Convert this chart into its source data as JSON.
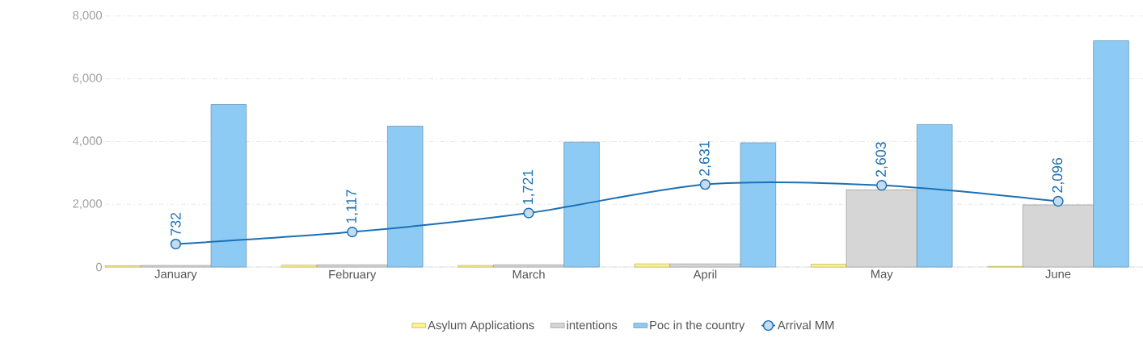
{
  "chart_data": {
    "type": "bar",
    "categories": [
      "January",
      "February",
      "March",
      "April",
      "May",
      "June"
    ],
    "series": [
      {
        "name": "Asylum Applications",
        "color": "#fff38a",
        "values": [
          40,
          60,
          50,
          100,
          90,
          20
        ]
      },
      {
        "name": "intentions",
        "color": "#d6d6d6",
        "values": [
          50,
          70,
          70,
          100,
          2460,
          1980
        ]
      },
      {
        "name": "Poc in the country",
        "color": "#8dcbf5",
        "values": [
          5180,
          4490,
          3980,
          3960,
          4540,
          7210
        ]
      },
      {
        "name": "Arrival MM",
        "type": "line",
        "color": "#1b70b5",
        "marker": "circle",
        "values": [
          732,
          1117,
          1721,
          2631,
          2603,
          2096
        ],
        "value_labels": [
          "732",
          "1,117",
          "1,721",
          "2,631",
          "2,603",
          "2,096"
        ]
      }
    ],
    "ylim": [
      0,
      8000
    ],
    "yticks": [
      {
        "value": 0,
        "label": "0"
      },
      {
        "value": 2000,
        "label": "2,000"
      },
      {
        "value": 4000,
        "label": "4,000"
      },
      {
        "value": 6000,
        "label": "6,000"
      },
      {
        "value": 8000,
        "label": "8,000"
      }
    ],
    "grid": "y",
    "legend": "bottom"
  }
}
